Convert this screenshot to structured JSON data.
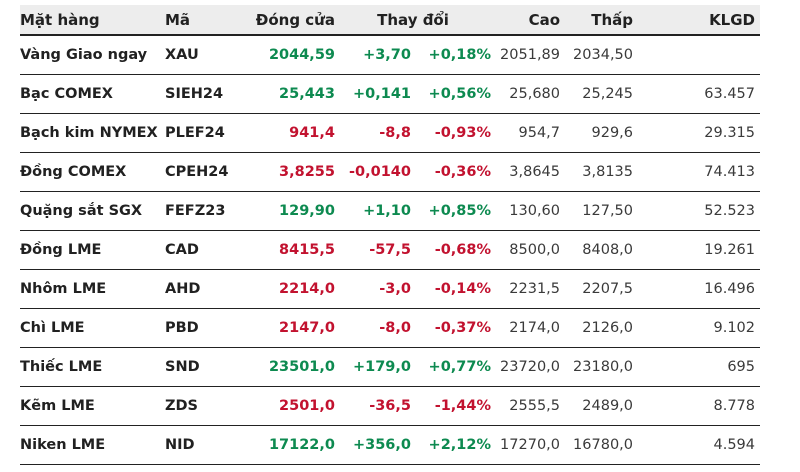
{
  "colors": {
    "up_green": "#0d8a50",
    "down_red": "#c2122f",
    "header_bg": "#ededed",
    "text_dark": "#212121",
    "text_number": "#3a3a3a",
    "divider": "#222222",
    "page_bg": "#ffffff"
  },
  "chart_data": {
    "type": "table",
    "title": "",
    "columns": [
      "Mặt hàng",
      "Mã",
      "Đóng cửa",
      "Thay đổi",
      "Cao",
      "Thấp",
      "KLGD"
    ],
    "rows": [
      {
        "name": "Vàng Giao ngay",
        "code": "XAU",
        "close": "2044,59",
        "change": "+3,70",
        "change_pct": "+0,18%",
        "high": "2051,89",
        "low": "2034,50",
        "volume": "",
        "trend": "up"
      },
      {
        "name": "Bạc COMEX",
        "code": "SIEH24",
        "close": "25,443",
        "change": "+0,141",
        "change_pct": "+0,56%",
        "high": "25,680",
        "low": "25,245",
        "volume": "63.457",
        "trend": "up"
      },
      {
        "name": "Bạch kim NYMEX",
        "code": "PLEF24",
        "close": "941,4",
        "change": "-8,8",
        "change_pct": "-0,93%",
        "high": "954,7",
        "low": "929,6",
        "volume": "29.315",
        "trend": "down"
      },
      {
        "name": "Đồng COMEX",
        "code": "CPEH24",
        "close": "3,8255",
        "change": "-0,0140",
        "change_pct": "-0,36%",
        "high": "3,8645",
        "low": "3,8135",
        "volume": "74.413",
        "trend": "down"
      },
      {
        "name": "Quặng sắt SGX",
        "code": "FEFZ23",
        "close": "129,90",
        "change": "+1,10",
        "change_pct": "+0,85%",
        "high": "130,60",
        "low": "127,50",
        "volume": "52.523",
        "trend": "up"
      },
      {
        "name": "Đồng LME",
        "code": "CAD",
        "close": "8415,5",
        "change": "-57,5",
        "change_pct": "-0,68%",
        "high": "8500,0",
        "low": "8408,0",
        "volume": "19.261",
        "trend": "down"
      },
      {
        "name": "Nhôm LME",
        "code": "AHD",
        "close": "2214,0",
        "change": "-3,0",
        "change_pct": "-0,14%",
        "high": "2231,5",
        "low": "2207,5",
        "volume": "16.496",
        "trend": "down"
      },
      {
        "name": "Chì LME",
        "code": "PBD",
        "close": "2147,0",
        "change": "-8,0",
        "change_pct": "-0,37%",
        "high": "2174,0",
        "low": "2126,0",
        "volume": "9.102",
        "trend": "down"
      },
      {
        "name": "Thiếc LME",
        "code": "SND",
        "close": "23501,0",
        "change": "+179,0",
        "change_pct": "+0,77%",
        "high": "23720,0",
        "low": "23180,0",
        "volume": "695",
        "trend": "up"
      },
      {
        "name": "Kẽm LME",
        "code": "ZDS",
        "close": "2501,0",
        "change": "-36,5",
        "change_pct": "-1,44%",
        "high": "2555,5",
        "low": "2489,0",
        "volume": "8.778",
        "trend": "down"
      },
      {
        "name": "Niken LME",
        "code": "NID",
        "close": "17122,0",
        "change": "+356,0",
        "change_pct": "+2,12%",
        "high": "17270,0",
        "low": "16780,0",
        "volume": "4.594",
        "trend": "up"
      }
    ]
  }
}
